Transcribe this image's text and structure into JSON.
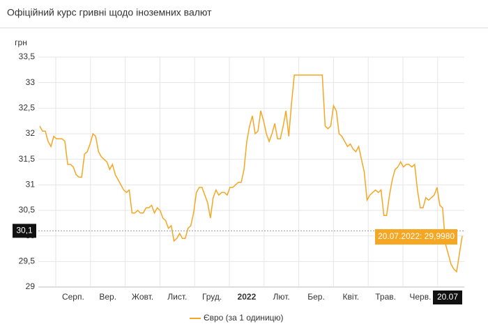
{
  "chart_data": {
    "type": "line",
    "title": "Офіційний курс гривні щодо іноземних валют",
    "y_label": "грн",
    "x_labels": [
      "Серп.",
      "Вер.",
      "Жовт.",
      "Лист.",
      "Груд.",
      "2022",
      "Лют.",
      "Бер.",
      "Квіт.",
      "Трав.",
      "Черв."
    ],
    "series": [
      {
        "name": "Євро (за 1 одиницю)",
        "color": "#f5a623",
        "values": [
          32.15,
          32.05,
          32.05,
          31.85,
          31.75,
          31.95,
          31.9,
          31.9,
          31.9,
          31.85,
          31.4,
          31.4,
          31.35,
          31.2,
          31.15,
          31.15,
          31.6,
          31.65,
          31.8,
          32.0,
          31.95,
          31.65,
          31.55,
          31.5,
          31.45,
          31.3,
          31.4,
          31.2,
          31.1,
          31.0,
          30.9,
          30.85,
          30.9,
          30.45,
          30.45,
          30.5,
          30.45,
          30.45,
          30.55,
          30.55,
          30.6,
          30.45,
          30.55,
          30.5,
          30.35,
          30.3,
          30.15,
          30.2,
          29.9,
          29.95,
          30.05,
          29.95,
          29.95,
          30.15,
          30.2,
          30.45,
          30.85,
          30.95,
          30.95,
          30.8,
          30.65,
          30.35,
          30.75,
          30.9,
          30.8,
          30.85,
          30.85,
          30.8,
          30.95,
          30.95,
          31.0,
          31.05,
          31.05,
          31.3,
          31.85,
          32.15,
          32.35,
          32.0,
          32.05,
          32.45,
          32.25,
          32.0,
          31.85,
          32.0,
          32.2,
          31.9,
          31.9,
          32.15,
          32.45,
          31.95,
          32.6,
          33.15,
          33.15,
          33.15,
          33.15,
          33.15,
          33.15,
          33.15,
          33.15,
          33.15,
          33.15,
          33.15,
          32.15,
          32.1,
          32.15,
          32.55,
          32.45,
          32.0,
          31.95,
          31.85,
          31.75,
          31.8,
          31.7,
          31.65,
          31.75,
          31.5,
          31.25,
          30.7,
          30.8,
          30.85,
          30.9,
          30.85,
          30.9,
          30.4,
          30.4,
          30.8,
          31.1,
          31.3,
          31.35,
          31.45,
          31.35,
          31.4,
          31.4,
          31.35,
          31.4,
          30.9,
          30.55,
          30.55,
          30.75,
          30.7,
          30.75,
          30.8,
          30.95,
          30.6,
          30.55,
          29.85,
          29.65,
          29.45,
          29.35,
          29.3,
          29.65,
          29.998
        ]
      }
    ],
    "ylim": [
      29,
      33.5
    ],
    "yticks": [
      29,
      {
        "value": 29.5,
        "label": "29,5"
      },
      30,
      {
        "value": 30.5,
        "label": "30,5"
      },
      31,
      {
        "value": 31.5,
        "label": "31,5"
      },
      32,
      {
        "value": 32.5,
        "label": "32,5"
      },
      33,
      {
        "value": 33.5,
        "label": "33,5"
      }
    ],
    "grid": true,
    "crosshair_y": {
      "value": 30.1,
      "label": "30,1"
    },
    "crosshair_x_label": "20.07",
    "tooltip_label": "20.07.2022: 29,9980"
  }
}
